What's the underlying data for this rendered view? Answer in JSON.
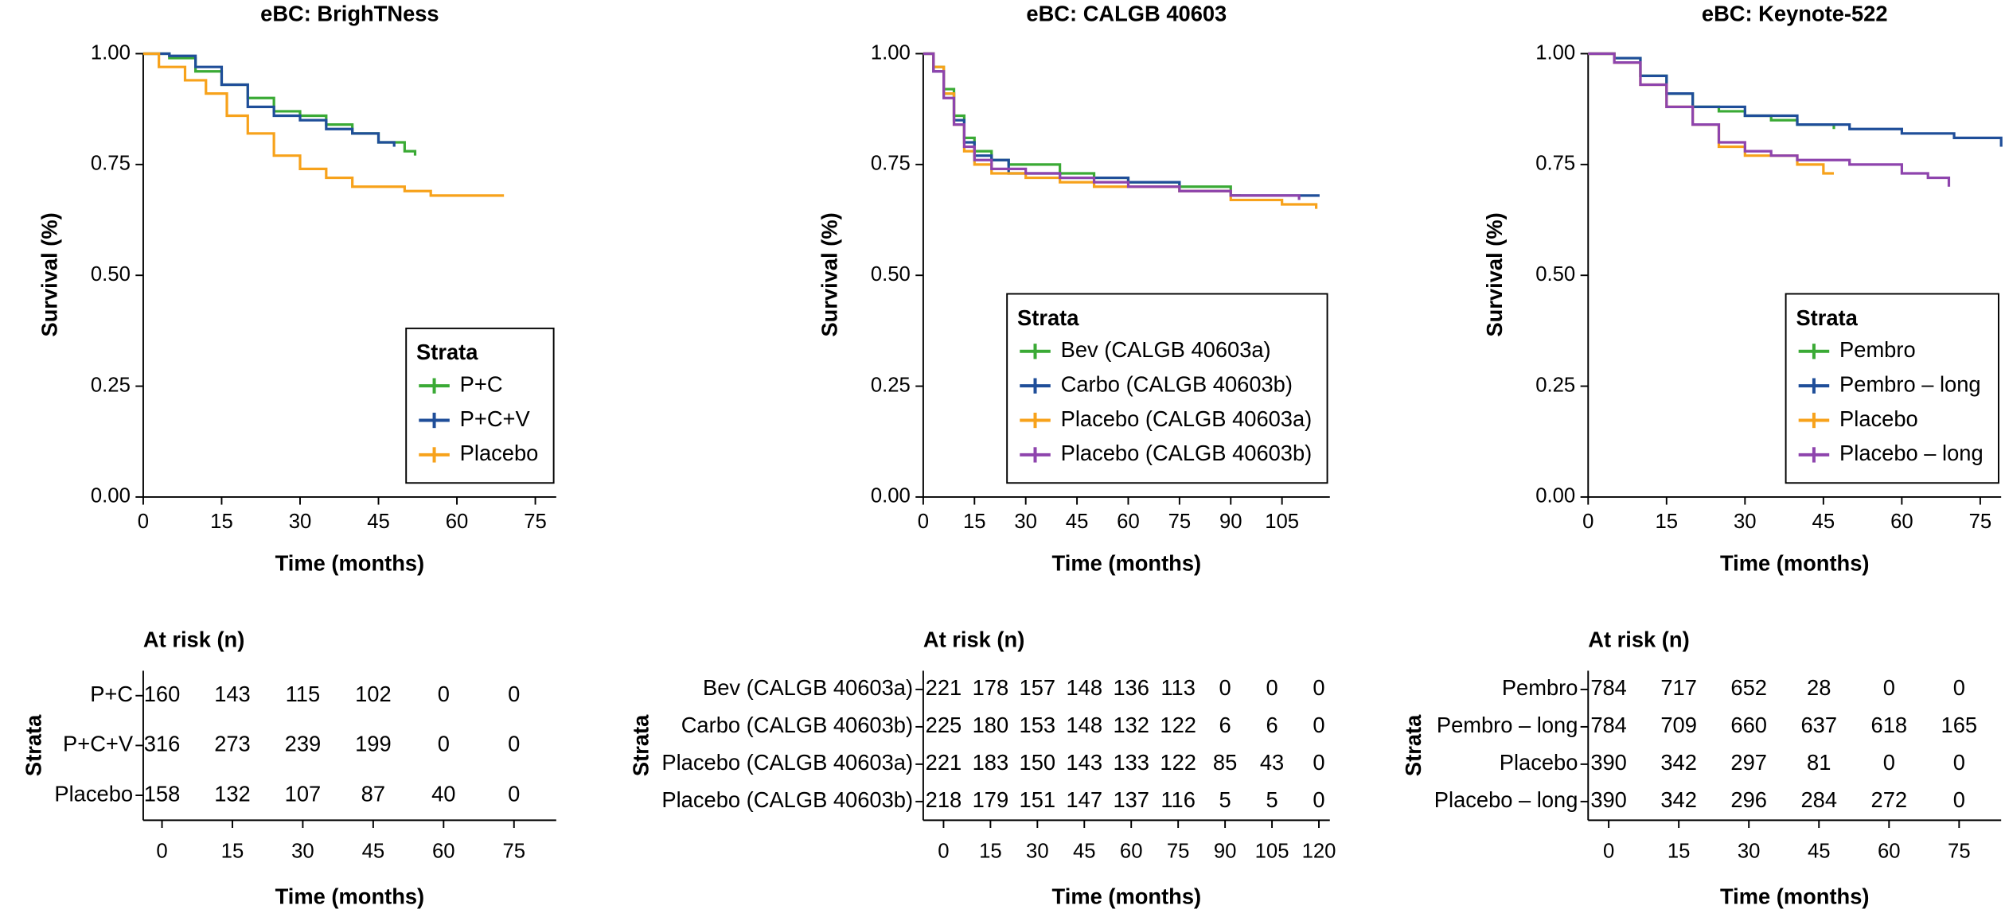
{
  "chart_data": [
    {
      "type": "line",
      "step": true,
      "title": "eBC: BrighTNess",
      "x_label": "Time (months)",
      "y_label": "Survival (%)",
      "xlim": [
        0,
        79
      ],
      "ylim": [
        0,
        1
      ],
      "xticks": [
        0,
        15,
        30,
        45,
        60,
        75
      ],
      "yticks": [
        {
          "value": 0,
          "label": "0.00"
        },
        {
          "value": 0.25,
          "label": "0.25"
        },
        {
          "value": 0.5,
          "label": "0.50"
        },
        {
          "value": 0.75,
          "label": "0.75"
        },
        {
          "value": 1,
          "label": "1.00"
        }
      ],
      "legend_title": "Strata",
      "legend_loc": "lower right",
      "series": [
        {
          "name": "P+C",
          "color": "#3aaa35",
          "x": [
            0,
            5,
            10,
            15,
            20,
            25,
            30,
            35,
            40,
            45,
            50,
            52
          ],
          "values": [
            1,
            0.99,
            0.96,
            0.93,
            0.9,
            0.87,
            0.86,
            0.84,
            0.82,
            0.8,
            0.78,
            0.77
          ]
        },
        {
          "name": "P+C+V",
          "color": "#1f4e99",
          "x": [
            0,
            5,
            10,
            15,
            20,
            25,
            30,
            35,
            40,
            45,
            48
          ],
          "values": [
            1,
            0.995,
            0.97,
            0.93,
            0.88,
            0.86,
            0.85,
            0.83,
            0.82,
            0.8,
            0.79
          ]
        },
        {
          "name": "Placebo",
          "color": "#f7a21b",
          "x": [
            0,
            3,
            8,
            12,
            16,
            20,
            25,
            30,
            35,
            40,
            50,
            55,
            69
          ],
          "values": [
            1,
            0.97,
            0.94,
            0.91,
            0.86,
            0.82,
            0.77,
            0.74,
            0.72,
            0.7,
            0.69,
            0.68,
            0.68
          ]
        }
      ],
      "risk_table": {
        "title": "At risk (n)",
        "y_label": "Strata",
        "x_label": "Time (months)",
        "xlim": [
          -4,
          84
        ],
        "xticks": [
          0,
          15,
          30,
          45,
          60,
          75
        ],
        "rows": [
          {
            "name": "P+C",
            "color": "#3aaa35",
            "values": [
              160,
              143,
              115,
              102,
              0,
              0
            ]
          },
          {
            "name": "P+C+V",
            "color": "#1f4e99",
            "values": [
              316,
              273,
              239,
              199,
              0,
              0
            ]
          },
          {
            "name": "Placebo",
            "color": "#f7a21b",
            "values": [
              158,
              132,
              107,
              87,
              40,
              0
            ]
          }
        ]
      }
    },
    {
      "type": "line",
      "step": true,
      "title": "eBC: CALGB 40603",
      "x_label": "Time (months)",
      "y_label": "Survival (%)",
      "xlim": [
        0,
        119
      ],
      "ylim": [
        0,
        1
      ],
      "xticks": [
        0,
        15,
        30,
        45,
        60,
        75,
        90,
        105
      ],
      "yticks": [
        {
          "value": 0,
          "label": "0.00"
        },
        {
          "value": 0.25,
          "label": "0.25"
        },
        {
          "value": 0.5,
          "label": "0.50"
        },
        {
          "value": 0.75,
          "label": "0.75"
        },
        {
          "value": 1,
          "label": "1.00"
        }
      ],
      "legend_title": "Strata",
      "legend_loc": "lower right",
      "series": [
        {
          "name": "Bev (CALGB 40603a)",
          "color": "#3aaa35",
          "x": [
            0,
            3,
            6,
            9,
            12,
            15,
            20,
            25,
            40,
            50,
            60,
            75,
            90,
            93
          ],
          "values": [
            1,
            0.97,
            0.92,
            0.86,
            0.81,
            0.78,
            0.76,
            0.75,
            0.73,
            0.72,
            0.71,
            0.7,
            0.68,
            0.68
          ]
        },
        {
          "name": "Carbo (CALGB 40603b)",
          "color": "#1f4e99",
          "x": [
            0,
            3,
            6,
            9,
            12,
            15,
            20,
            25,
            40,
            60,
            75,
            90,
            116
          ],
          "values": [
            1,
            0.96,
            0.91,
            0.85,
            0.8,
            0.77,
            0.76,
            0.73,
            0.72,
            0.71,
            0.69,
            0.68,
            0.68
          ]
        },
        {
          "name": "Placebo (CALGB 40603a)",
          "color": "#f7a21b",
          "x": [
            0,
            3,
            6,
            9,
            12,
            15,
            20,
            30,
            40,
            50,
            75,
            90,
            105,
            115
          ],
          "values": [
            1,
            0.97,
            0.91,
            0.84,
            0.78,
            0.75,
            0.73,
            0.72,
            0.71,
            0.7,
            0.69,
            0.67,
            0.66,
            0.65
          ]
        },
        {
          "name": "Placebo (CALGB 40603b)",
          "color": "#8e44ad",
          "x": [
            0,
            3,
            6,
            9,
            12,
            15,
            20,
            30,
            40,
            50,
            60,
            75,
            90,
            110
          ],
          "values": [
            1,
            0.96,
            0.9,
            0.84,
            0.79,
            0.76,
            0.74,
            0.73,
            0.72,
            0.71,
            0.7,
            0.69,
            0.68,
            0.67
          ]
        }
      ],
      "risk_table": {
        "title": "At risk (n)",
        "y_label": "Strata",
        "x_label": "Time (months)",
        "xlim": [
          -6.5,
          123.5
        ],
        "xticks": [
          0,
          15,
          30,
          45,
          60,
          75,
          90,
          105,
          120
        ],
        "rows": [
          {
            "name": "Bev (CALGB 40603a)",
            "color": "#3aaa35",
            "values": [
              221,
              178,
              157,
              148,
              136,
              113,
              0,
              0,
              0
            ]
          },
          {
            "name": "Carbo (CALGB 40603b)",
            "color": "#1f4e99",
            "values": [
              225,
              180,
              153,
              148,
              132,
              122,
              6,
              6,
              0
            ]
          },
          {
            "name": "Placebo (CALGB 40603a)",
            "color": "#f7a21b",
            "values": [
              221,
              183,
              150,
              143,
              133,
              122,
              85,
              43,
              0
            ]
          },
          {
            "name": "Placebo (CALGB 40603b)",
            "color": "#8e44ad",
            "values": [
              218,
              179,
              151,
              147,
              137,
              116,
              5,
              5,
              0
            ]
          }
        ]
      }
    },
    {
      "type": "line",
      "step": true,
      "title": "eBC: Keynote-522",
      "x_label": "Time (months)",
      "y_label": "Survival (%)",
      "xlim": [
        0,
        79
      ],
      "ylim": [
        0,
        1
      ],
      "xticks": [
        0,
        15,
        30,
        45,
        60,
        75
      ],
      "yticks": [
        {
          "value": 0,
          "label": "0.00"
        },
        {
          "value": 0.25,
          "label": "0.25"
        },
        {
          "value": 0.5,
          "label": "0.50"
        },
        {
          "value": 0.75,
          "label": "0.75"
        },
        {
          "value": 1,
          "label": "1.00"
        }
      ],
      "legend_title": "Strata",
      "legend_loc": "lower right",
      "series": [
        {
          "name": "Pembro",
          "color": "#3aaa35",
          "x": [
            0,
            5,
            10,
            15,
            20,
            25,
            30,
            35,
            40,
            47
          ],
          "values": [
            1,
            0.99,
            0.95,
            0.91,
            0.88,
            0.87,
            0.86,
            0.85,
            0.84,
            0.83
          ]
        },
        {
          "name": "Pembro – long",
          "color": "#1f4e99",
          "x": [
            0,
            5,
            10,
            15,
            20,
            30,
            40,
            50,
            60,
            70,
            79
          ],
          "values": [
            1,
            0.99,
            0.95,
            0.91,
            0.88,
            0.86,
            0.84,
            0.83,
            0.82,
            0.81,
            0.79
          ]
        },
        {
          "name": "Placebo",
          "color": "#f7a21b",
          "x": [
            0,
            5,
            10,
            15,
            20,
            25,
            30,
            40,
            45,
            47
          ],
          "values": [
            1,
            0.98,
            0.93,
            0.88,
            0.84,
            0.79,
            0.77,
            0.75,
            0.73,
            0.73
          ]
        },
        {
          "name": "Placebo – long",
          "color": "#8e44ad",
          "x": [
            0,
            5,
            10,
            15,
            20,
            25,
            30,
            35,
            40,
            50,
            60,
            65,
            69
          ],
          "values": [
            1,
            0.98,
            0.93,
            0.88,
            0.84,
            0.8,
            0.78,
            0.77,
            0.76,
            0.75,
            0.73,
            0.72,
            0.7
          ]
        }
      ],
      "risk_table": {
        "title": "At risk (n)",
        "y_label": "Strata",
        "x_label": "Time (months)",
        "xlim": [
          -4.4,
          84
        ],
        "xticks": [
          0,
          15,
          30,
          45,
          60,
          75
        ],
        "rows": [
          {
            "name": "Pembro",
            "color": "#3aaa35",
            "values": [
              784,
              717,
              652,
              28,
              0,
              0
            ]
          },
          {
            "name": "Pembro – long",
            "color": "#1f4e99",
            "values": [
              784,
              709,
              660,
              637,
              618,
              165
            ]
          },
          {
            "name": "Placebo",
            "color": "#f7a21b",
            "values": [
              390,
              342,
              297,
              81,
              0,
              0
            ]
          },
          {
            "name": "Placebo – long",
            "color": "#8e44ad",
            "values": [
              390,
              342,
              296,
              284,
              272,
              0
            ]
          }
        ]
      }
    }
  ]
}
